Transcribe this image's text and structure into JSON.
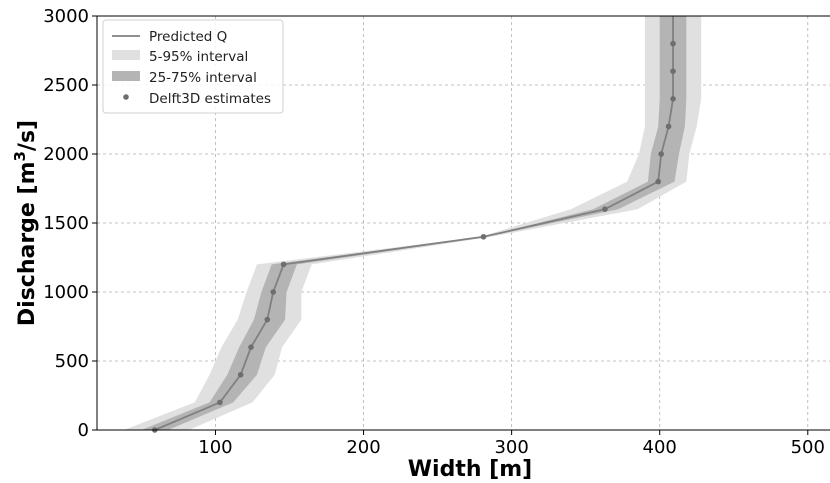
{
  "chart_data": {
    "type": "line",
    "xlabel": "Width [m]",
    "ylabel_main": "Discharge [m",
    "ylabel_sup": "3",
    "ylabel_end": "/s]",
    "xlim": [
      20,
      515
    ],
    "ylim": [
      0,
      3000
    ],
    "xticks": [
      100,
      200,
      300,
      400,
      500
    ],
    "yticks": [
      0,
      500,
      1000,
      1500,
      2000,
      2500,
      3000
    ],
    "grid": true,
    "legend_position": "top-left",
    "colors": {
      "line": "#808080",
      "band_5_95": "#e0e0e0",
      "band_25_75": "#b4b4b4",
      "points": "#6e6e6e",
      "grid": "#b0b0b0"
    },
    "legend": [
      {
        "label": "Predicted Q",
        "kind": "line"
      },
      {
        "label": "5-95% interval",
        "kind": "band_light"
      },
      {
        "label": "25-75% interval",
        "kind": "band_dark"
      },
      {
        "label": "Delft3D estimates",
        "kind": "point"
      }
    ],
    "series": [
      {
        "name": "Predicted Q",
        "x": [
          59,
          103,
          117,
          124,
          135,
          139,
          146,
          281,
          363,
          399,
          401,
          406,
          409,
          409,
          409,
          409
        ],
        "y": [
          0,
          200,
          400,
          600,
          800,
          1000,
          1200,
          1400,
          1600,
          1800,
          2000,
          2200,
          2400,
          2600,
          2800,
          3000
        ]
      },
      {
        "name": "5-95% interval",
        "y": [
          0,
          200,
          400,
          600,
          800,
          1000,
          1200,
          1400,
          1600,
          1800,
          2000,
          2200,
          2400,
          2600,
          2800,
          3000
        ],
        "x_low": [
          38,
          86,
          96,
          104,
          115,
          121,
          128,
          279,
          340,
          378,
          386,
          390,
          390,
          390,
          390,
          390
        ],
        "x_high": [
          82,
          125,
          140,
          145,
          158,
          158,
          165,
          286,
          385,
          418,
          420,
          425,
          428,
          428,
          428,
          428
        ]
      },
      {
        "name": "25-75% interval",
        "y": [
          0,
          200,
          400,
          600,
          800,
          1000,
          1200,
          1400,
          1600,
          1800,
          2000,
          2200,
          2400,
          2600,
          2800,
          3000
        ],
        "x_low": [
          50,
          96,
          108,
          116,
          126,
          131,
          138,
          281,
          355,
          392,
          394,
          399,
          400,
          400,
          400,
          400
        ],
        "x_high": [
          68,
          112,
          128,
          134,
          147,
          148,
          155,
          283,
          372,
          410,
          413,
          417,
          418,
          418,
          418,
          418
        ]
      },
      {
        "name": "Delft3D estimates",
        "x": [
          59,
          103,
          117,
          124,
          135,
          139,
          146,
          281,
          363,
          399,
          401,
          406,
          409,
          409,
          409
        ],
        "y": [
          0,
          200,
          400,
          600,
          800,
          1000,
          1200,
          1400,
          1600,
          1800,
          2000,
          2200,
          2400,
          2600,
          2800
        ]
      }
    ]
  }
}
